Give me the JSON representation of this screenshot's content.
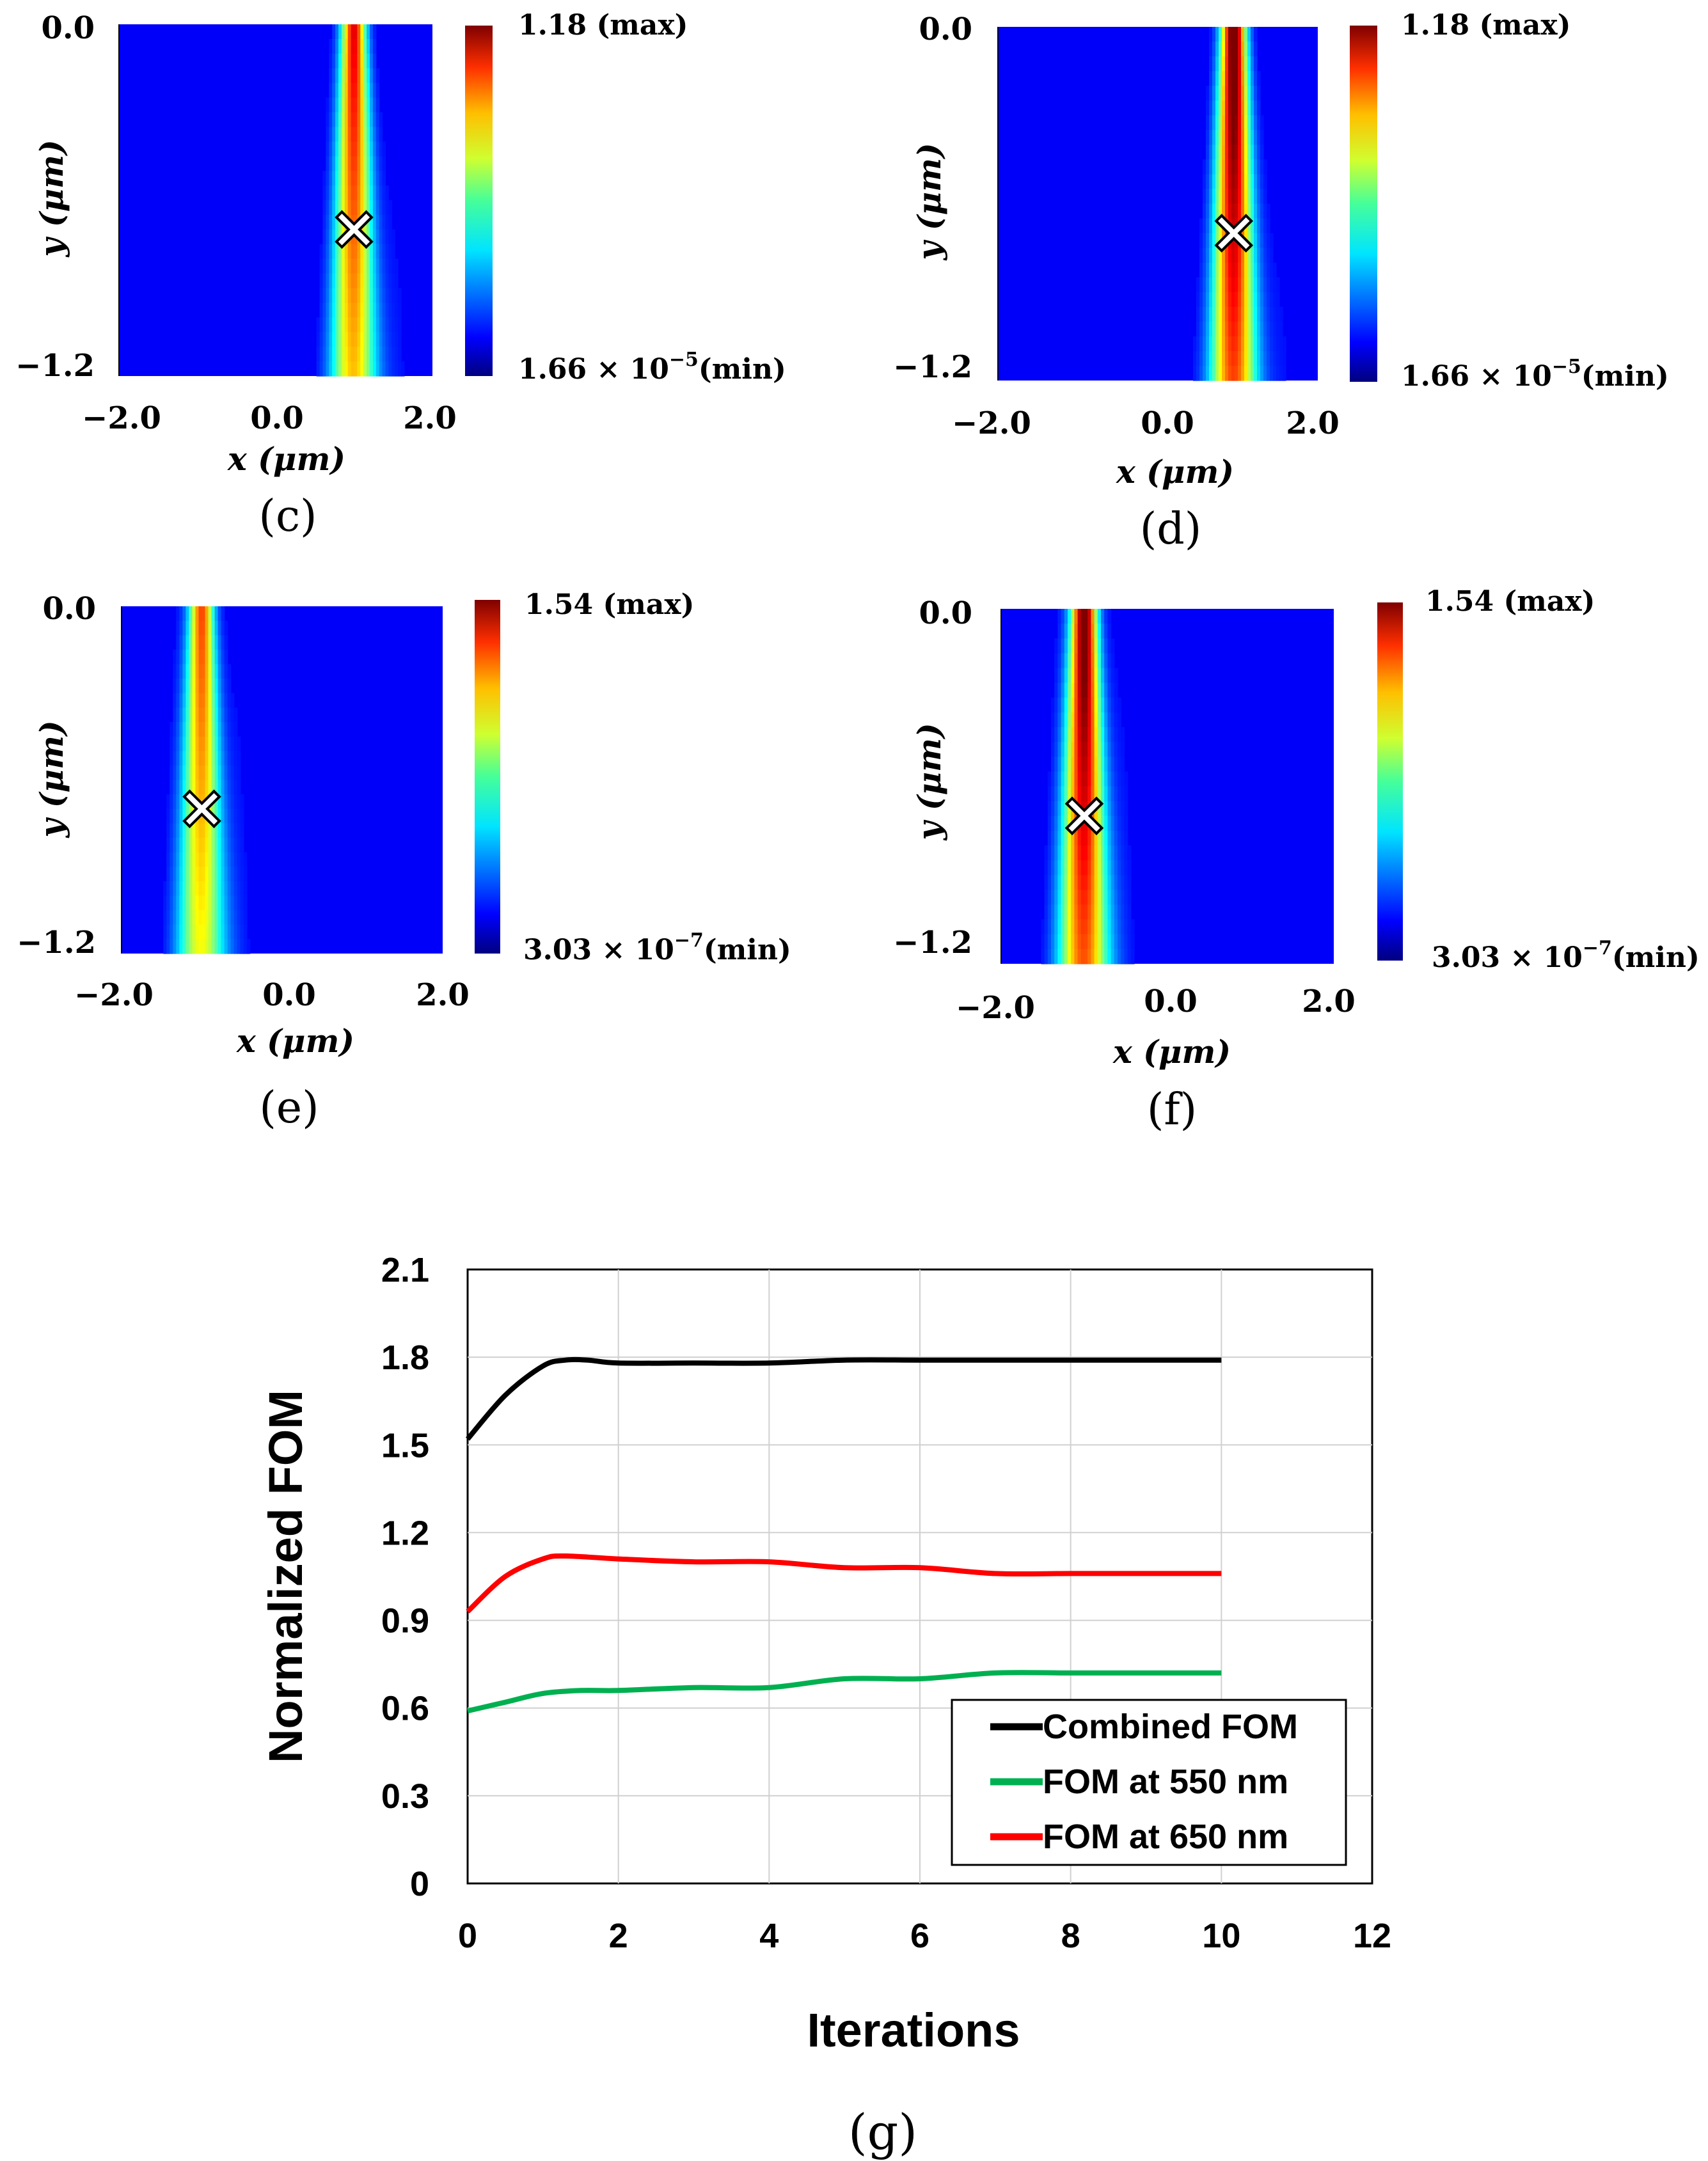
{
  "colormap_panels": [
    {
      "label": "(c)",
      "xlabel": "x (μm)",
      "ylabel": "y (μm)",
      "x_range": [
        -2.0,
        2.0
      ],
      "y_range": [
        -1.2,
        0.0
      ],
      "x_ticks": [
        "−2.0",
        "0.0",
        "2.0"
      ],
      "y_ticks": [
        "0.0",
        "−1.2"
      ],
      "colorbar_max": "1.18 (max)",
      "colorbar_min_mantissa": "1.66 × 10",
      "colorbar_min_exp": "−5",
      "colorbar_min_suffix": "(min)",
      "beam_center_x": 1.0,
      "beam_peak": 0.78,
      "marker": {
        "x": 1.0,
        "y": -0.7
      }
    },
    {
      "label": "(d)",
      "xlabel": "x (μm)",
      "ylabel": "y (μm)",
      "x_range": [
        -2.0,
        2.0
      ],
      "y_range": [
        -1.2,
        0.0
      ],
      "x_ticks": [
        "−2.0",
        "0.0",
        "2.0"
      ],
      "y_ticks": [
        "0.0",
        "−1.2"
      ],
      "colorbar_max": "1.18 (max)",
      "colorbar_min_mantissa": "1.66 × 10",
      "colorbar_min_exp": "−5",
      "colorbar_min_suffix": "(min)",
      "beam_center_x": 0.95,
      "beam_peak": 0.95,
      "marker": {
        "x": 0.95,
        "y": -0.7
      }
    },
    {
      "label": "(e)",
      "xlabel": "x (μm)",
      "ylabel": "y (μm)",
      "x_range": [
        -2.0,
        2.0
      ],
      "y_range": [
        -1.2,
        0.0
      ],
      "x_ticks": [
        "−2.0",
        "0.0",
        "2.0"
      ],
      "y_ticks": [
        "0.0",
        "−1.2"
      ],
      "colorbar_max": "1.54 (max)",
      "colorbar_min_mantissa": "3.03 × 10",
      "colorbar_min_exp": "−7",
      "colorbar_min_suffix": "(min)",
      "beam_center_x": -1.0,
      "beam_peak": 0.7,
      "marker": {
        "x": -1.0,
        "y": -0.7
      }
    },
    {
      "label": "(f)",
      "xlabel": "x (μm)",
      "ylabel": "y (μm)",
      "x_range": [
        -2.0,
        2.0
      ],
      "y_range": [
        -1.2,
        0.0
      ],
      "x_ticks": [
        "−2.0",
        "0.0",
        "2.0"
      ],
      "y_ticks": [
        "0.0",
        "−1.2"
      ],
      "colorbar_max": "1.54 (max)",
      "colorbar_min_mantissa": "3.03 × 10",
      "colorbar_min_exp": "−7",
      "colorbar_min_suffix": "(min)",
      "beam_center_x": -1.0,
      "beam_peak": 0.95,
      "marker": {
        "x": -1.0,
        "y": -0.7
      }
    }
  ],
  "chart_data": {
    "type": "line",
    "label": "(g)",
    "xlabel": "Iterations",
    "ylabel": "Normalized FOM",
    "xlim": [
      0,
      12
    ],
    "ylim": [
      0,
      2.1
    ],
    "x_ticks": [
      0,
      2,
      4,
      6,
      8,
      10,
      12
    ],
    "y_ticks": [
      "0",
      "0.3",
      "0.6",
      "0.9",
      "1.2",
      "1.5",
      "1.8",
      "2.1"
    ],
    "grid": true,
    "legend_position": "bottom-right",
    "series": [
      {
        "name": "Combined FOM",
        "color": "#000000",
        "x": [
          0,
          0.5,
          1,
          1.3,
          1.6,
          2,
          3,
          4,
          5,
          6,
          7,
          8,
          9,
          10
        ],
        "y": [
          1.52,
          1.67,
          1.77,
          1.79,
          1.79,
          1.78,
          1.78,
          1.78,
          1.79,
          1.79,
          1.79,
          1.79,
          1.79,
          1.79
        ]
      },
      {
        "name": "FOM at 550 nm",
        "color": "#00b050",
        "x": [
          0,
          0.5,
          1,
          1.5,
          2,
          3,
          4,
          5,
          6,
          7,
          8,
          9,
          10
        ],
        "y": [
          0.59,
          0.62,
          0.65,
          0.66,
          0.66,
          0.67,
          0.67,
          0.7,
          0.7,
          0.72,
          0.72,
          0.72,
          0.72
        ]
      },
      {
        "name": "FOM at 650 nm",
        "color": "#ff0000",
        "x": [
          0,
          0.5,
          1,
          1.3,
          2,
          3,
          4,
          5,
          6,
          7,
          8,
          9,
          10
        ],
        "y": [
          0.93,
          1.05,
          1.11,
          1.12,
          1.11,
          1.1,
          1.1,
          1.08,
          1.08,
          1.06,
          1.06,
          1.06,
          1.06
        ]
      }
    ]
  }
}
